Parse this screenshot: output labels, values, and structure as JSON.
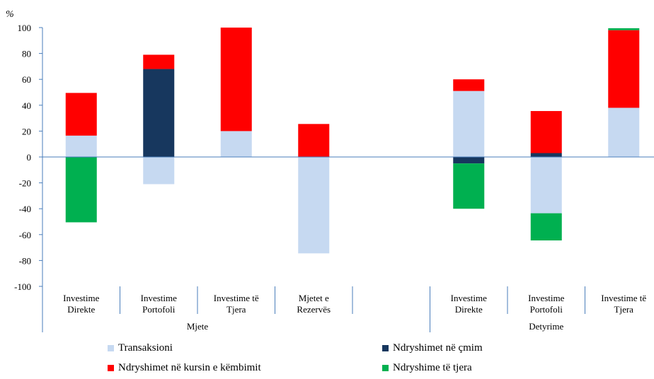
{
  "chart_data": {
    "type": "bar",
    "stacked": true,
    "ylabel": "%",
    "ylim": [
      -100,
      100
    ],
    "yticks": [
      "100",
      "80",
      "60",
      "40",
      "20",
      "0",
      "-20",
      "-40",
      "-60",
      "-80",
      "-100"
    ],
    "grid": false,
    "legend_position": "bottom",
    "categories": [
      {
        "label": [
          "Investime",
          "Direkte"
        ],
        "group": "Mjete"
      },
      {
        "label": [
          "Investime",
          "Portofoli"
        ],
        "group": "Mjete"
      },
      {
        "label": [
          "Investime të",
          "Tjera"
        ],
        "group": "Mjete"
      },
      {
        "label": [
          "Mjetet e",
          "Rezervës"
        ],
        "group": "Mjete"
      },
      {
        "label": [],
        "group": ""
      },
      {
        "label": [
          "Investime",
          "Direkte"
        ],
        "group": "Detyrime"
      },
      {
        "label": [
          "Investime",
          "Portofoli"
        ],
        "group": "Detyrime"
      },
      {
        "label": [
          "Investime të",
          "Tjera"
        ],
        "group": "Detyrime"
      }
    ],
    "groups": [
      {
        "name": "Mjete",
        "from": 0,
        "to": 4
      },
      {
        "name": "Detyrime",
        "from": 5,
        "to": 8
      }
    ],
    "series": [
      {
        "name": "Transaksioni",
        "color": "#c6d9f1",
        "values": [
          16.5,
          -21,
          20,
          -74.5,
          null,
          51,
          -43.5,
          38
        ]
      },
      {
        "name": "Ndryshimet në çmim",
        "color": "#17375e",
        "values": [
          0,
          68,
          0,
          0,
          null,
          -5,
          3,
          0
        ]
      },
      {
        "name": "Ndryshimet në kursin e këmbimit",
        "color": "#ff0000",
        "values": [
          33,
          11,
          80,
          25.5,
          null,
          9,
          32.5,
          60
        ]
      },
      {
        "name": "Ndryshime të tjera",
        "color": "#00b050",
        "values": [
          -50.5,
          0,
          0,
          0,
          null,
          -35,
          -21,
          1.5
        ]
      }
    ]
  }
}
